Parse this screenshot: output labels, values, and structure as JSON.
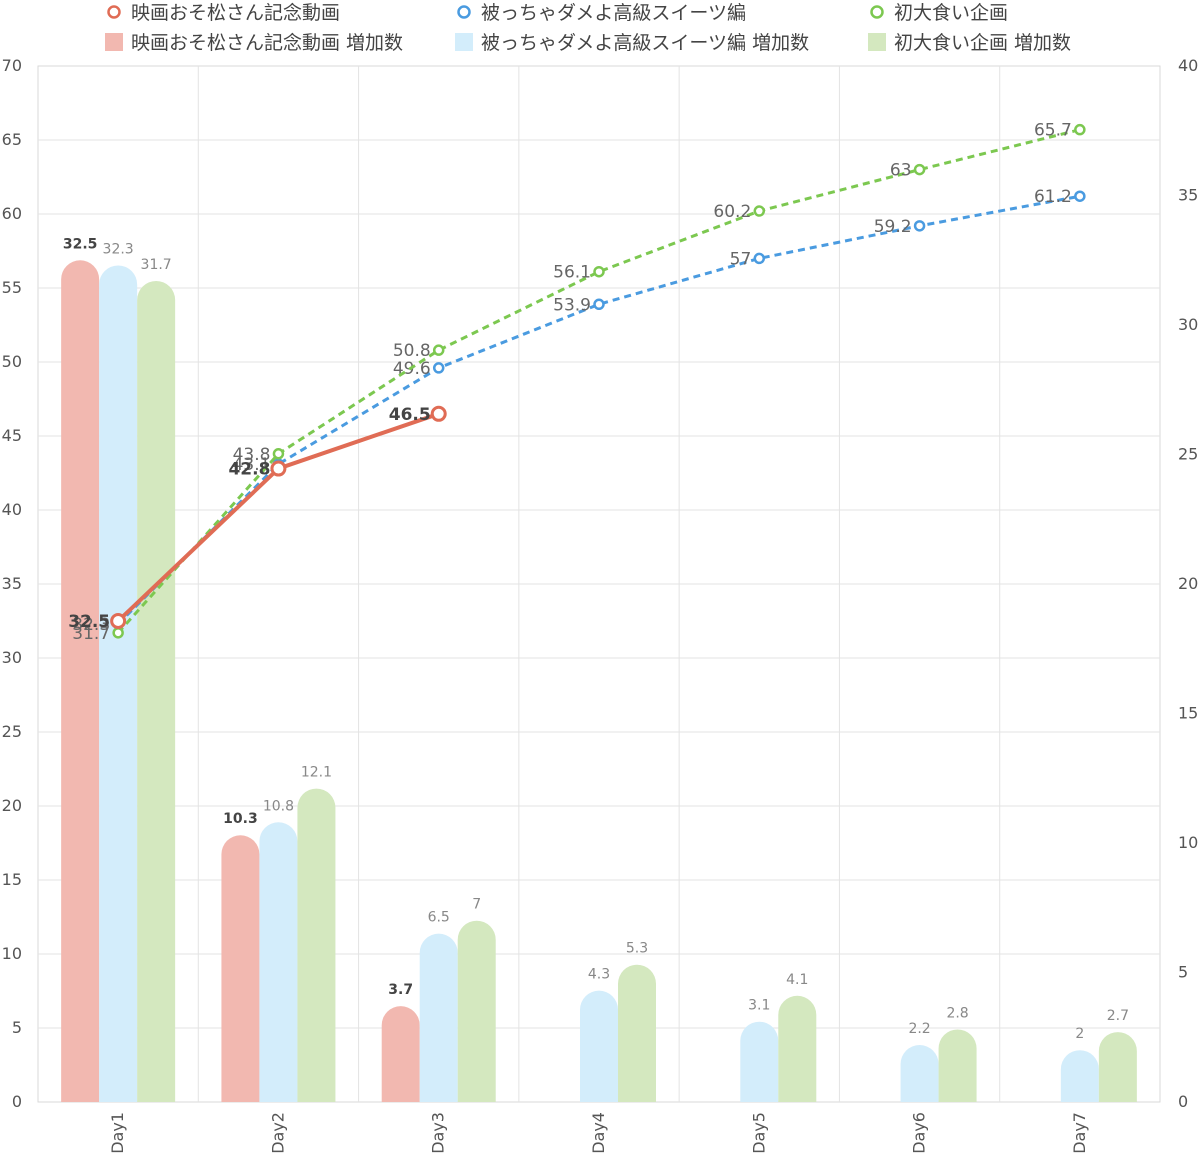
{
  "chart_data": {
    "type": "bar",
    "categories": [
      "Day1",
      "Day2",
      "Day3",
      "Day4",
      "Day5",
      "Day6",
      "Day7"
    ],
    "y_left": {
      "min": 0,
      "max": 70,
      "step": 5
    },
    "y_right": {
      "min": 0,
      "max": 40,
      "step": 5
    },
    "grid": true,
    "legend_position": "top",
    "bar_series": [
      {
        "name": "映画おそ松さん記念動画 増加数",
        "color": "#f2b8b0",
        "axis": "right",
        "label_bold": true,
        "values": [
          32.5,
          10.3,
          3.7,
          null,
          null,
          null,
          null
        ]
      },
      {
        "name": "被っちゃダメよ高級スイーツ編 増加数",
        "color": "#d3edfb",
        "axis": "right",
        "label_bold": false,
        "values": [
          32.3,
          10.8,
          6.5,
          4.3,
          3.1,
          2.2,
          2
        ]
      },
      {
        "name": "初大食い企画 増加数",
        "color": "#d4e8bf",
        "axis": "right",
        "label_bold": false,
        "values": [
          31.7,
          12.1,
          7,
          5.3,
          4.1,
          2.8,
          2.7
        ]
      }
    ],
    "line_series": [
      {
        "name": "映画おそ松さん記念動画",
        "color": "#e06c55",
        "axis": "left",
        "dashed": false,
        "label_bold": true,
        "values": [
          32.5,
          42.8,
          46.5,
          null,
          null,
          null,
          null
        ]
      },
      {
        "name": "被っちゃダメよ高級スイーツ編",
        "color": "#4a9be0",
        "axis": "left",
        "dashed": true,
        "label_bold": false,
        "values": [
          32.3,
          43.1,
          49.6,
          53.9,
          57,
          59.2,
          61.2
        ]
      },
      {
        "name": "初大食い企画",
        "color": "#7cc850",
        "axis": "left",
        "dashed": true,
        "label_bold": false,
        "values": [
          31.7,
          43.8,
          50.8,
          56.1,
          60.2,
          63,
          65.7
        ]
      }
    ]
  }
}
